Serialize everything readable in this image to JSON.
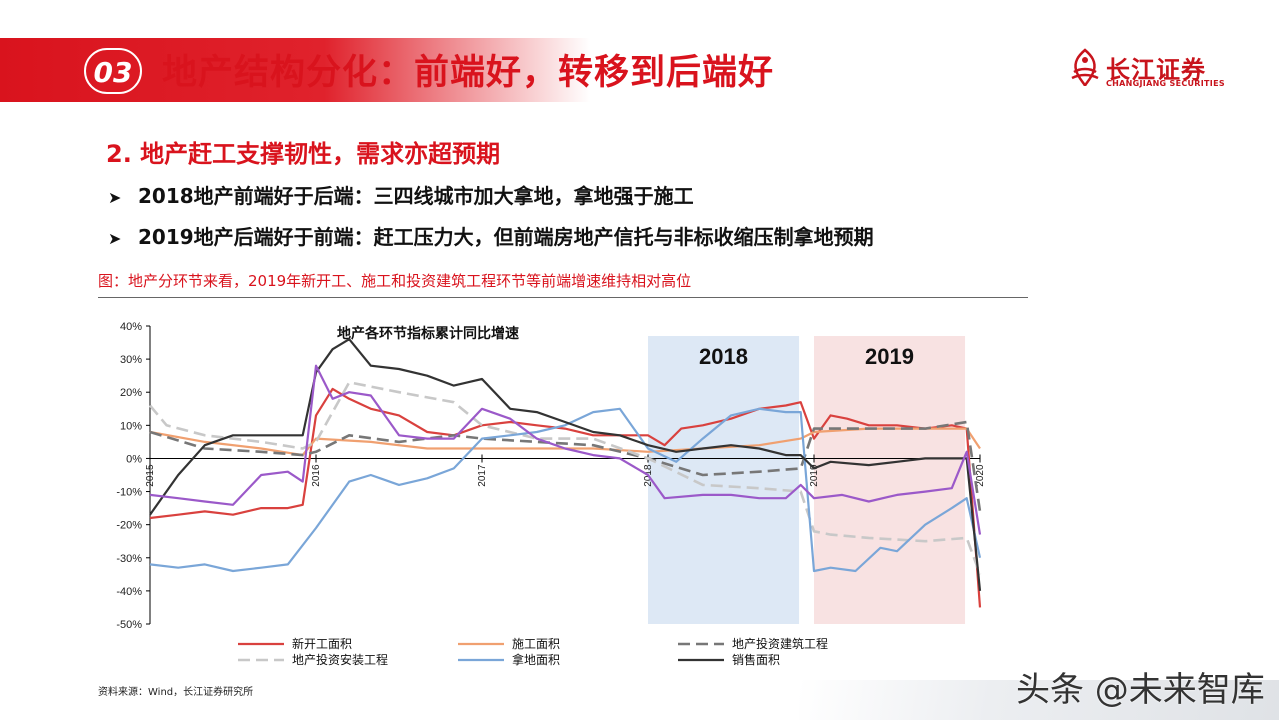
{
  "header": {
    "section_number": "03",
    "title": "地产结构分化：前端好，转移到后端好",
    "brand_color": "#d9131d"
  },
  "logo": {
    "name_cn": "长江证券",
    "name_en": "CHANGJIANG SECURITIES"
  },
  "content": {
    "subtitle": "2. 地产赶工支撑韧性，需求亦超预期",
    "bullets": [
      "2018地产前端好于后端：三四线城市加大拿地，拿地强于施工",
      "2019地产后端好于前端：赶工压力大，但前端房地产信托与非标收缩压制拿地预期"
    ],
    "bullet_icon": "arrow-bullet-icon",
    "figure_caption": "图：地产分环节来看，2019年新开工、施工和投资建筑工程环节等前端增速维持相对高位",
    "source": "资料来源：Wind，长江证券研究所"
  },
  "watermark": "头条 @未来智库",
  "chart_data": {
    "type": "line",
    "title": "地产各环节指标累计同比增速",
    "ylim": [
      -0.5,
      0.4
    ],
    "yticks": [
      "40%",
      "30%",
      "20%",
      "10%",
      "0%",
      "-10%",
      "-20%",
      "-30%",
      "-40%",
      "-50%"
    ],
    "x_ticks": [
      "2015",
      "2016",
      "2017",
      "2018",
      "2019",
      "2020"
    ],
    "grid": false,
    "legend_position": "bottom",
    "highlights": [
      {
        "label": "2018",
        "from": 2018.0,
        "to": 2018.91,
        "color": "#dde8f5"
      },
      {
        "label": "2019",
        "from": 2019.0,
        "to": 2019.91,
        "color": "#f8e2e2"
      }
    ],
    "series": [
      {
        "name": "新开工面积",
        "color": "#d9413e",
        "style": "solid",
        "x": [
          2015.0,
          2015.17,
          2015.33,
          2015.5,
          2015.67,
          2015.83,
          2015.92,
          2016.0,
          2016.1,
          2016.2,
          2016.33,
          2016.5,
          2016.67,
          2016.83,
          2017.0,
          2017.17,
          2017.33,
          2017.5,
          2017.67,
          2017.83,
          2018.0,
          2018.1,
          2018.2,
          2018.33,
          2018.5,
          2018.67,
          2018.83,
          2018.92,
          2019.0,
          2019.1,
          2019.2,
          2019.33,
          2019.5,
          2019.67,
          2019.83,
          2019.92,
          2020.0
        ],
        "y": [
          -0.18,
          -0.17,
          -0.16,
          -0.17,
          -0.15,
          -0.15,
          -0.14,
          0.13,
          0.21,
          0.18,
          0.15,
          0.13,
          0.08,
          0.07,
          0.1,
          0.11,
          0.1,
          0.09,
          0.07,
          0.07,
          0.07,
          0.04,
          0.09,
          0.1,
          0.12,
          0.15,
          0.16,
          0.17,
          0.06,
          0.13,
          0.12,
          0.1,
          0.1,
          0.09,
          0.1,
          0.09,
          -0.45
        ]
      },
      {
        "name": "施工面积",
        "color": "#f0a070",
        "style": "solid",
        "x": [
          2015.0,
          2015.33,
          2015.67,
          2015.92,
          2016.0,
          2016.33,
          2016.67,
          2017.0,
          2017.33,
          2017.67,
          2018.0,
          2018.33,
          2018.67,
          2018.92,
          2019.0,
          2019.33,
          2019.67,
          2019.92,
          2020.0
        ],
        "y": [
          0.08,
          0.05,
          0.03,
          0.01,
          0.06,
          0.05,
          0.03,
          0.03,
          0.03,
          0.03,
          0.02,
          0.03,
          0.04,
          0.06,
          0.08,
          0.09,
          0.09,
          0.09,
          0.03
        ]
      },
      {
        "name": "地产投资建筑工程",
        "color": "#777777",
        "style": "dashed",
        "x": [
          2015.0,
          2015.33,
          2015.67,
          2015.92,
          2016.0,
          2016.2,
          2016.5,
          2016.83,
          2017.0,
          2017.33,
          2017.67,
          2018.0,
          2018.33,
          2018.67,
          2018.92,
          2019.0,
          2019.33,
          2019.67,
          2019.92,
          2020.0
        ],
        "y": [
          0.08,
          0.03,
          0.02,
          0.01,
          0.02,
          0.07,
          0.05,
          0.07,
          0.06,
          0.05,
          0.04,
          0.0,
          -0.05,
          -0.04,
          -0.03,
          0.09,
          0.09,
          0.09,
          0.11,
          -0.16
        ]
      },
      {
        "name": "地产投资安装工程",
        "color": "#c8c8c8",
        "style": "dashed",
        "x": [
          2015.0,
          2015.1,
          2015.33,
          2015.67,
          2015.92,
          2016.0,
          2016.2,
          2016.5,
          2016.83,
          2017.0,
          2017.33,
          2017.67,
          2018.0,
          2018.33,
          2018.67,
          2018.92,
          2019.0,
          2019.1,
          2019.33,
          2019.67,
          2019.92,
          2020.0
        ],
        "y": [
          0.16,
          0.1,
          0.07,
          0.05,
          0.03,
          0.05,
          0.23,
          0.2,
          0.17,
          0.1,
          0.06,
          0.06,
          0.0,
          -0.08,
          -0.09,
          -0.1,
          -0.22,
          -0.23,
          -0.24,
          -0.25,
          -0.24,
          -0.35
        ]
      },
      {
        "name": "拿地面积",
        "color": "#7aa6d8",
        "style": "solid",
        "x": [
          2015.0,
          2015.17,
          2015.33,
          2015.5,
          2015.67,
          2015.83,
          2016.0,
          2016.2,
          2016.33,
          2016.5,
          2016.67,
          2016.83,
          2017.0,
          2017.17,
          2017.33,
          2017.5,
          2017.67,
          2017.83,
          2018.0,
          2018.17,
          2018.33,
          2018.5,
          2018.67,
          2018.83,
          2018.92,
          2019.0,
          2019.1,
          2019.25,
          2019.4,
          2019.5,
          2019.67,
          2019.83,
          2019.92,
          2020.0
        ],
        "y": [
          -0.32,
          -0.33,
          -0.32,
          -0.34,
          -0.33,
          -0.32,
          -0.21,
          -0.07,
          -0.05,
          -0.08,
          -0.06,
          -0.03,
          0.06,
          0.07,
          0.08,
          0.1,
          0.14,
          0.15,
          0.03,
          -0.01,
          0.06,
          0.13,
          0.15,
          0.14,
          0.14,
          -0.34,
          -0.33,
          -0.34,
          -0.27,
          -0.28,
          -0.2,
          -0.15,
          -0.12,
          -0.3
        ]
      },
      {
        "name": "销售面积",
        "color": "#333333",
        "style": "solid",
        "x": [
          2015.0,
          2015.17,
          2015.33,
          2015.5,
          2015.67,
          2015.83,
          2015.92,
          2016.0,
          2016.1,
          2016.2,
          2016.33,
          2016.5,
          2016.67,
          2016.83,
          2017.0,
          2017.17,
          2017.33,
          2017.5,
          2017.67,
          2017.83,
          2018.0,
          2018.17,
          2018.33,
          2018.5,
          2018.67,
          2018.83,
          2018.92,
          2019.0,
          2019.1,
          2019.33,
          2019.5,
          2019.67,
          2019.83,
          2019.92,
          2020.0
        ],
        "y": [
          -0.17,
          -0.05,
          0.04,
          0.07,
          0.07,
          0.07,
          0.07,
          0.26,
          0.33,
          0.36,
          0.28,
          0.27,
          0.25,
          0.22,
          0.24,
          0.15,
          0.14,
          0.11,
          0.08,
          0.07,
          0.04,
          0.02,
          0.03,
          0.04,
          0.03,
          0.01,
          0.01,
          -0.03,
          -0.01,
          -0.02,
          -0.01,
          0.0,
          0.0,
          0.0,
          -0.4
        ]
      },
      {
        "name": "purple",
        "color": "#9b59c9",
        "style": "solid",
        "legend": false,
        "x": [
          2015.0,
          2015.17,
          2015.33,
          2015.5,
          2015.67,
          2015.83,
          2015.92,
          2016.0,
          2016.1,
          2016.2,
          2016.33,
          2016.5,
          2016.67,
          2016.83,
          2017.0,
          2017.17,
          2017.33,
          2017.5,
          2017.67,
          2017.83,
          2018.0,
          2018.1,
          2018.33,
          2018.5,
          2018.67,
          2018.83,
          2018.92,
          2019.0,
          2019.17,
          2019.33,
          2019.5,
          2019.67,
          2019.83,
          2019.92,
          2020.0
        ],
        "y": [
          -0.11,
          -0.12,
          -0.13,
          -0.14,
          -0.05,
          -0.04,
          -0.07,
          0.28,
          0.18,
          0.2,
          0.19,
          0.07,
          0.06,
          0.06,
          0.15,
          0.12,
          0.06,
          0.03,
          0.01,
          0.0,
          -0.05,
          -0.12,
          -0.11,
          -0.11,
          -0.12,
          -0.12,
          -0.08,
          -0.12,
          -0.11,
          -0.13,
          -0.11,
          -0.1,
          -0.09,
          0.02,
          -0.23
        ]
      }
    ]
  }
}
